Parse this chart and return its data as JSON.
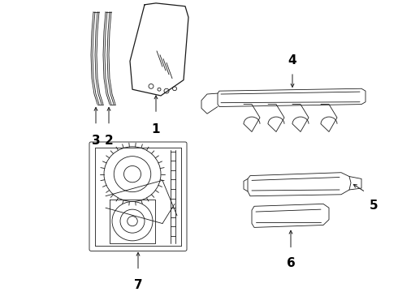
{
  "background_color": "#ffffff",
  "line_color": "#1a1a1a",
  "label_color": "#000000",
  "fig_width": 4.9,
  "fig_height": 3.6,
  "dpi": 100,
  "label_fontsize": 9,
  "label_fontsize_large": 11
}
